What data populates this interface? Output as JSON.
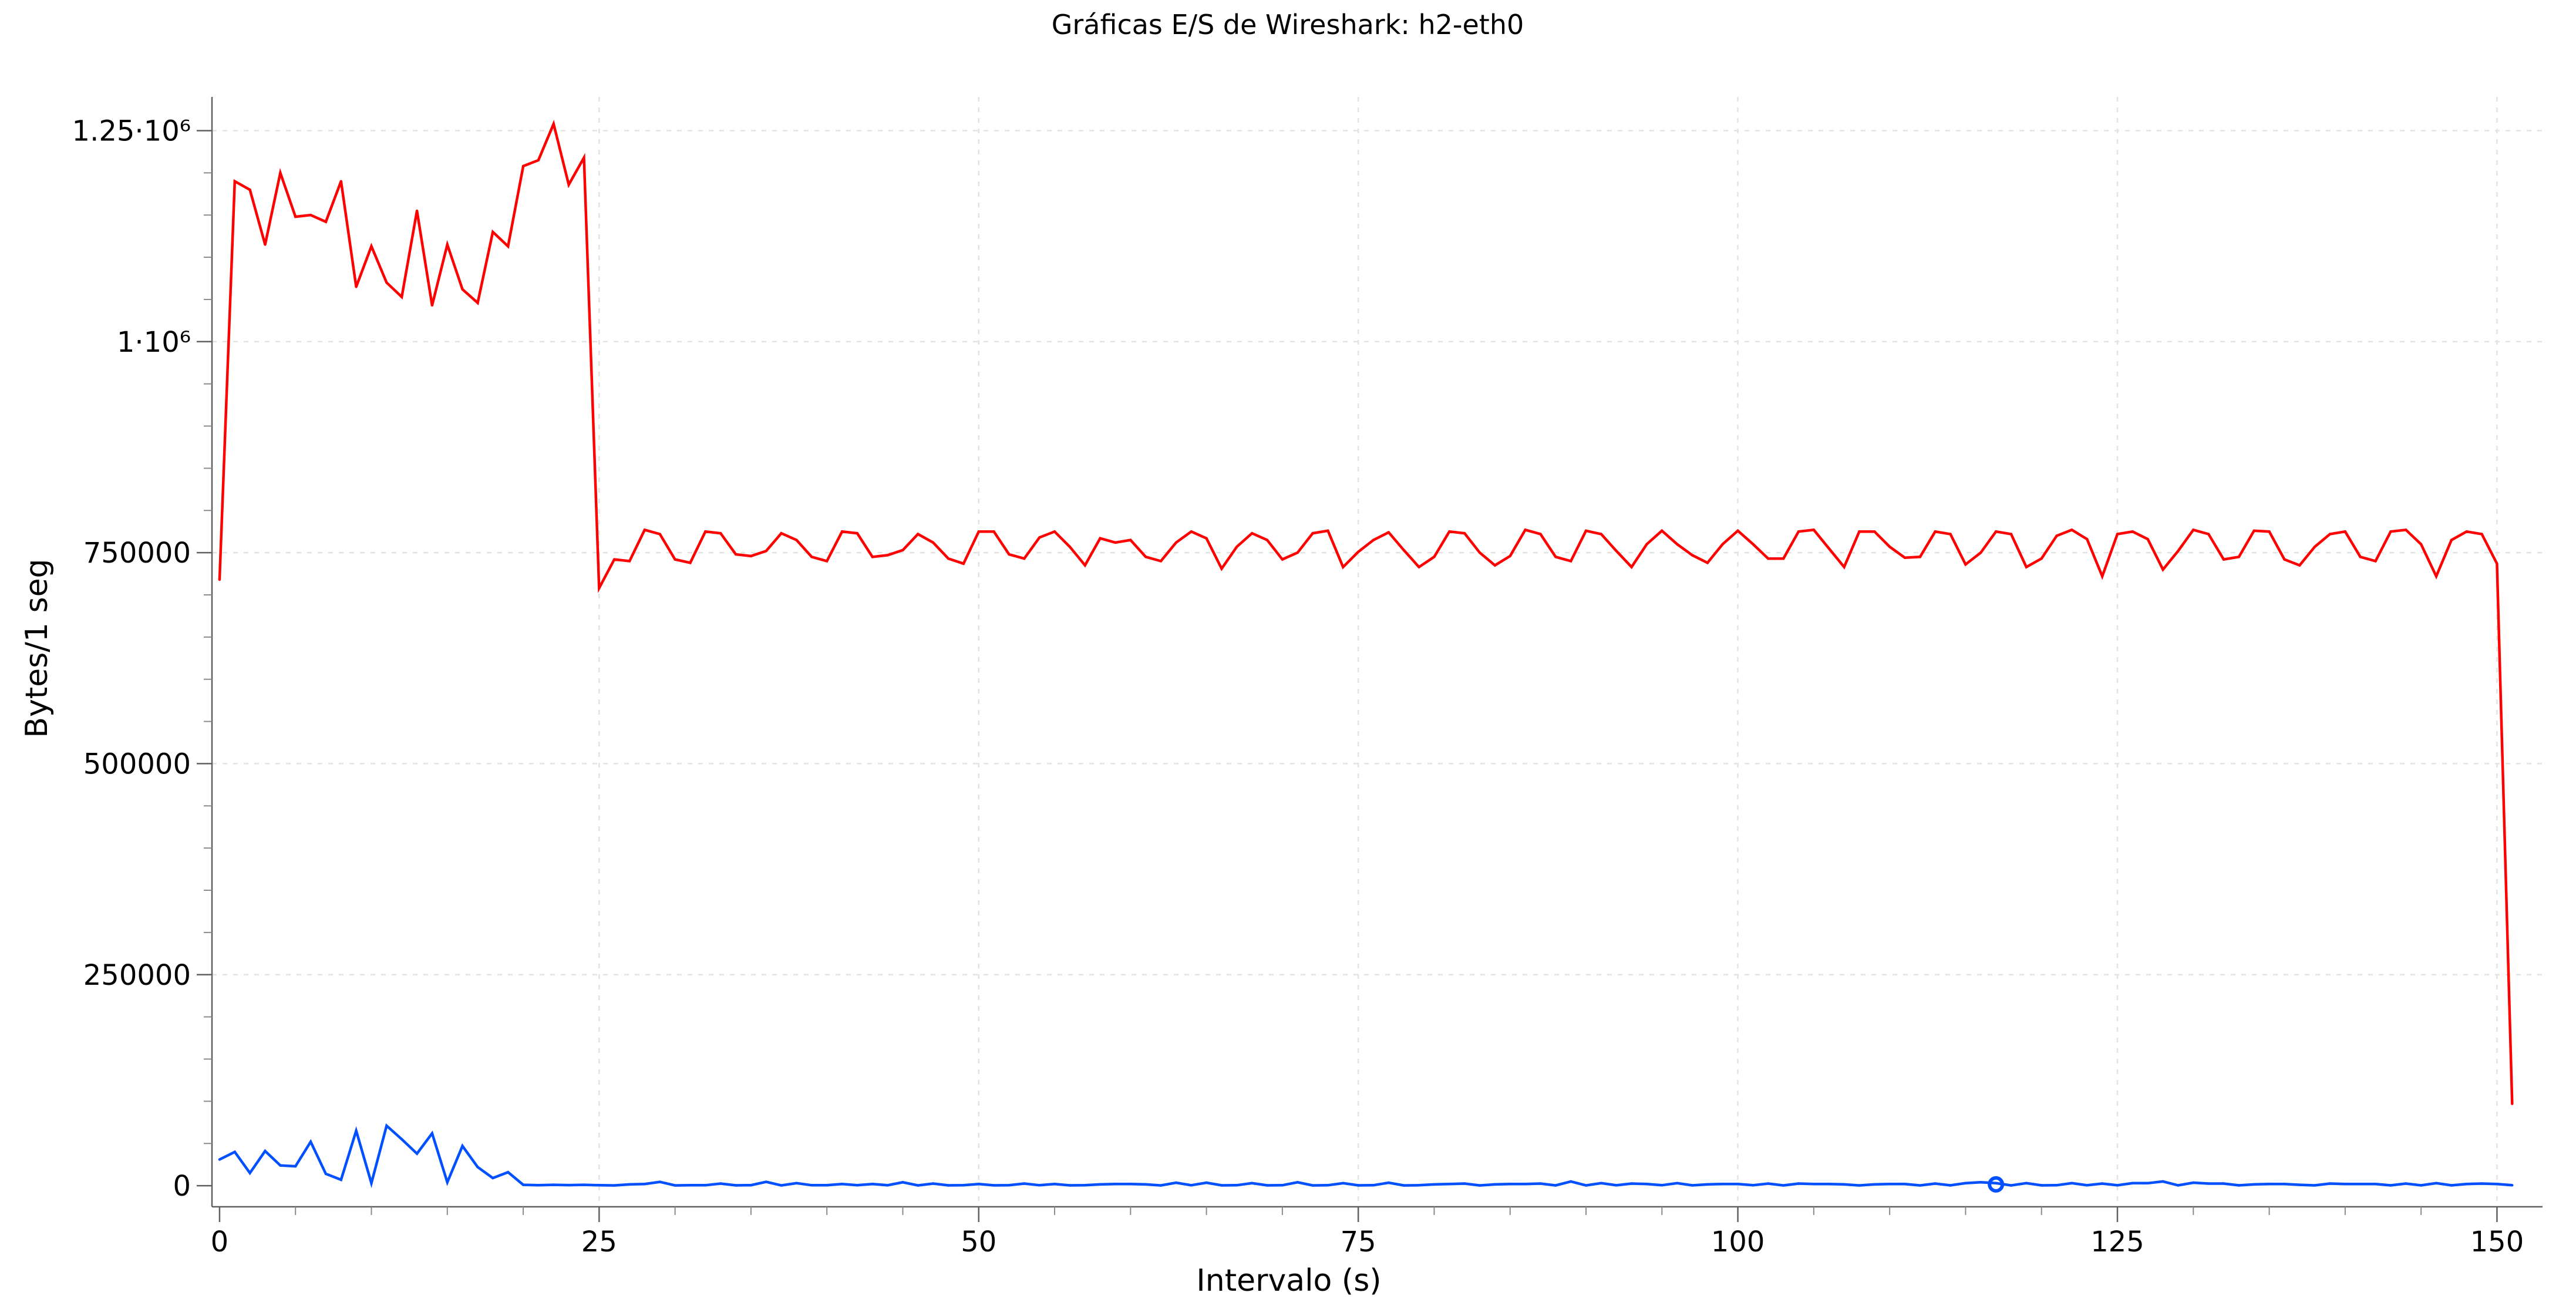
{
  "chart_data": {
    "type": "line",
    "title": "Gráficas E/S de Wireshark: h2-eth0",
    "xlabel": "Intervalo (s)",
    "ylabel": "Bytes/1 seg",
    "xlim": [
      -0.5,
      153
    ],
    "ylim": [
      -25000,
      1290000
    ],
    "x_ticks": [
      0,
      25,
      50,
      75,
      100,
      125,
      150
    ],
    "x_tick_labels": [
      "0",
      "25",
      "50",
      "75",
      "100",
      "125",
      "150"
    ],
    "y_ticks": [
      0,
      250000,
      500000,
      750000,
      1000000,
      1250000
    ],
    "y_tick_labels": [
      "0",
      "250000",
      "500000",
      "750000",
      "1·10⁶",
      "1.25·10⁶"
    ],
    "grid": true,
    "series": [
      {
        "color": "#ff0000",
        "x_start": 0,
        "x_step": 1,
        "values": [
          718000,
          1190000,
          1180000,
          1115000,
          1200000,
          1148000,
          1150000,
          1142000,
          1190000,
          1065000,
          1113000,
          1070000,
          1053000,
          1155000,
          1043000,
          1115000,
          1062000,
          1046000,
          1130000,
          1113000,
          1208000,
          1215000,
          1258000,
          1186000,
          1218000,
          708000,
          742000,
          740000,
          777000,
          772000,
          742000,
          738000,
          775000,
          773000,
          748000,
          746000,
          752000,
          773000,
          765000,
          745000,
          740000,
          775000,
          773000,
          745000,
          747000,
          753000,
          772000,
          762000,
          743000,
          737000,
          775000,
          775000,
          748000,
          743000,
          768000,
          775000,
          757000,
          735000,
          767000,
          762000,
          765000,
          745000,
          740000,
          762000,
          775000,
          767000,
          731000,
          757000,
          773000,
          765000,
          742000,
          750000,
          773000,
          776000,
          733000,
          751000,
          765000,
          774000,
          753000,
          733000,
          745000,
          775000,
          773000,
          750000,
          735000,
          746000,
          777000,
          772000,
          745000,
          740000,
          776000,
          772000,
          752000,
          733000,
          760000,
          776000,
          760000,
          747000,
          738000,
          760000,
          776000,
          760000,
          743000,
          743000,
          775000,
          777000,
          755000,
          733000,
          775000,
          775000,
          757000,
          744000,
          745000,
          775000,
          772000,
          736000,
          750000,
          775000,
          772000,
          733000,
          743000,
          770000,
          777000,
          766000,
          722000,
          772000,
          775000,
          766000,
          730000,
          752000,
          777000,
          772000,
          742000,
          745000,
          776000,
          775000,
          742000,
          735000,
          757000,
          772000,
          775000,
          745000,
          740000,
          775000,
          777000,
          760000,
          722000,
          765000,
          775000,
          772000,
          737000,
          97000
        ]
      },
      {
        "color": "#0050ff",
        "x_start": 0,
        "x_step": 1,
        "values": [
          31000,
          40000,
          15000,
          41000,
          24000,
          23000,
          52000,
          14000,
          7000,
          65000,
          3000,
          71000,
          55000,
          38000,
          62000,
          4000,
          47000,
          22000,
          9000,
          16000,
          1000,
          500,
          1000,
          700,
          1000,
          500,
          300,
          1500,
          2000,
          4500,
          300,
          600,
          500,
          2500,
          400,
          600,
          4500,
          300,
          3000,
          500,
          500,
          2000,
          600,
          2000,
          500,
          4000,
          300,
          2500,
          400,
          500,
          2000,
          400,
          600,
          2500,
          500,
          2000,
          400,
          500,
          1500,
          2000,
          2000,
          1500,
          300,
          3500,
          500,
          3500,
          400,
          500,
          3000,
          400,
          500,
          4000,
          300,
          500,
          3000,
          400,
          500,
          3500,
          300,
          500,
          1500,
          2000,
          2500,
          300,
          1500,
          2000,
          2000,
          2500,
          300,
          5000,
          300,
          3000,
          500,
          2500,
          2000,
          500,
          3000,
          400,
          1500,
          2000,
          2000,
          500,
          2500,
          300,
          2500,
          2000,
          2000,
          1500,
          300,
          1500,
          2000,
          2000,
          300,
          2500,
          400,
          3000,
          4000,
          3000,
          300,
          3000,
          400,
          500,
          3000,
          500,
          2500,
          500,
          3000,
          3000,
          5000,
          400,
          3500,
          2500,
          2500,
          400,
          1500,
          2000,
          2000,
          1000,
          400,
          2500,
          2000,
          2000,
          2000,
          400,
          2500,
          400,
          3000,
          400,
          2000,
          2500,
          2000,
          500
        ]
      }
    ],
    "marker": {
      "x": 117,
      "y": 1500,
      "color": "#0050ff"
    }
  }
}
